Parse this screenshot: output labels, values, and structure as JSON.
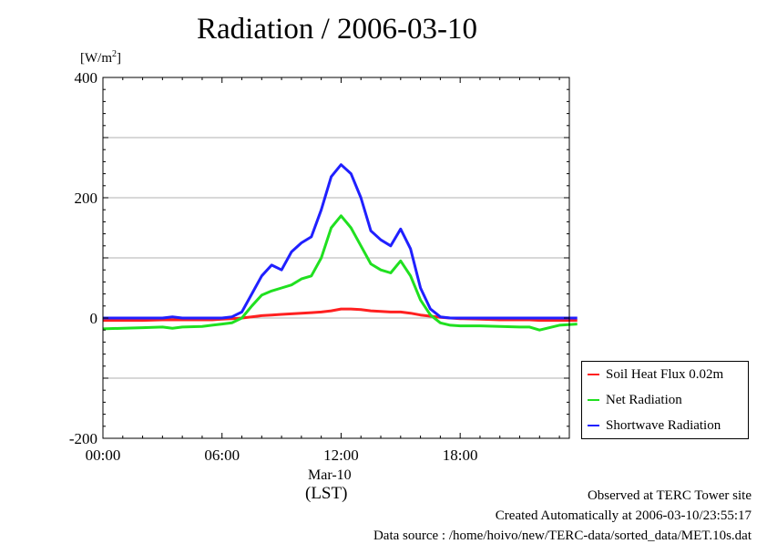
{
  "title": "Radiation / 2006-03-10",
  "unit_label": "[W/m",
  "unit_sup": "2",
  "unit_close": "]",
  "footer": {
    "line1": "Observed at TERC Tower site",
    "line2": "Created Automatically at 2006-03-10/23:55:17",
    "line3": "Data source : /home/hoivo/new/TERC-data/sorted_data/MET.10s.dat"
  },
  "chart_data": {
    "type": "line",
    "title": "Radiation / 2006-03-10",
    "xlabel": "(LST)",
    "x_date_label": "Mar-10",
    "ylabel": "[W/m2]",
    "xlim": [
      "00:00",
      "24:00"
    ],
    "ylim": [
      -200,
      400
    ],
    "x_ticks": [
      "00:00",
      "06:00",
      "12:00",
      "18:00"
    ],
    "y_ticks": [
      "-200",
      "0",
      "200",
      "400"
    ],
    "grid": true,
    "legend_position": "right-bottom",
    "x_hours": [
      0,
      1,
      2,
      3,
      3.5,
      4,
      5,
      5.5,
      6,
      6.5,
      7,
      7.5,
      8,
      8.5,
      9,
      9.5,
      10,
      10.5,
      11,
      11.5,
      12,
      12.5,
      13,
      13.5,
      14,
      14.5,
      15,
      15.5,
      16,
      16.5,
      17,
      17.5,
      18,
      19,
      20,
      21,
      21.5,
      22,
      23,
      23.9
    ],
    "series": [
      {
        "name": "Soil Heat Flux 0.02m",
        "color": "#ff2020",
        "values": [
          -4,
          -4,
          -4,
          -3,
          -3,
          -3,
          -3,
          -3,
          -2,
          -1,
          0,
          2,
          4,
          5,
          6,
          7,
          8,
          9,
          10,
          12,
          15,
          15,
          14,
          12,
          11,
          10,
          10,
          8,
          5,
          3,
          1,
          0,
          -1,
          -2,
          -3,
          -3,
          -3,
          -4,
          -4,
          -4
        ]
      },
      {
        "name": "Net Radiation",
        "color": "#20e020",
        "values": [
          -18,
          -17,
          -16,
          -15,
          -17,
          -15,
          -14,
          -12,
          -10,
          -8,
          0,
          20,
          38,
          45,
          50,
          55,
          65,
          70,
          100,
          150,
          170,
          150,
          120,
          90,
          80,
          75,
          95,
          70,
          30,
          5,
          -8,
          -12,
          -13,
          -13,
          -14,
          -15,
          -15,
          -20,
          -12,
          -10
        ]
      },
      {
        "name": "Shortwave Radiation",
        "color": "#2020ff",
        "values": [
          0,
          0,
          0,
          0,
          2,
          0,
          0,
          0,
          0,
          2,
          10,
          40,
          70,
          88,
          80,
          110,
          125,
          135,
          180,
          235,
          255,
          240,
          200,
          145,
          130,
          120,
          148,
          115,
          50,
          15,
          2,
          0,
          0,
          0,
          0,
          0,
          0,
          0,
          0,
          0
        ]
      }
    ]
  }
}
